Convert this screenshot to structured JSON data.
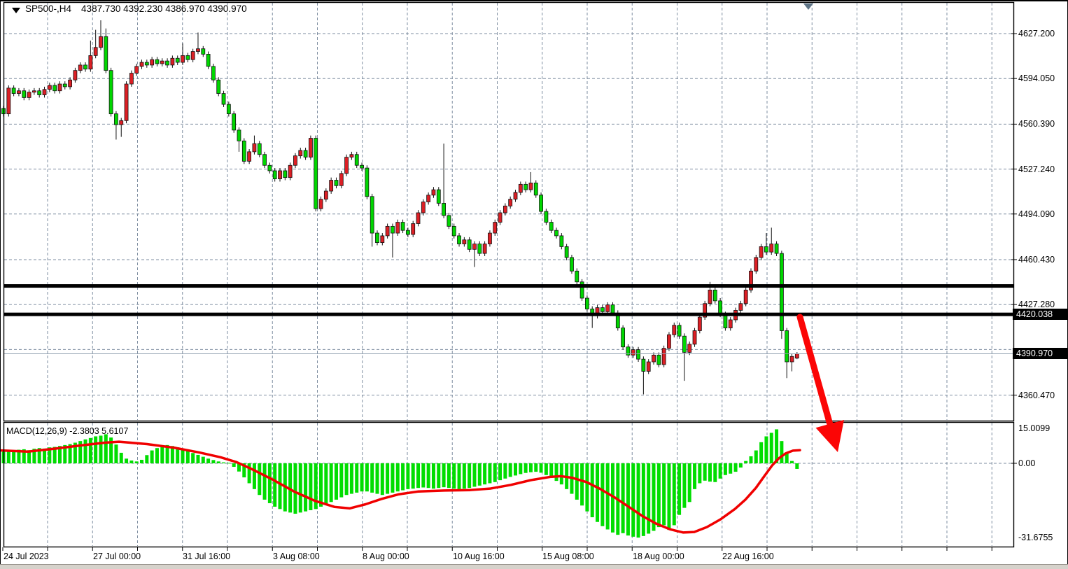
{
  "header": {
    "symbol_period": "SP500-,H4",
    "quote_open": "4387.730",
    "quote_high": "4392.230",
    "quote_low": "4386.970",
    "quote_close": "4390.970"
  },
  "macd_panel": {
    "label": "MACD(12,26,9) -2.3803 5.6107",
    "axis_labels": [
      "15.0099",
      "0.00",
      "-31.6755"
    ],
    "axis_values": [
      15.0099,
      0,
      -31.6755
    ]
  },
  "price_axis": {
    "tick_labels": [
      "4627.200",
      "4594.050",
      "4560.390",
      "4527.240",
      "4494.090",
      "4460.430",
      "4427.280",
      "4360.470"
    ],
    "tick_values": [
      4627.2,
      4594.05,
      4560.39,
      4527.24,
      4494.09,
      4460.43,
      4427.28,
      4360.47
    ],
    "hidden_grid_values": [
      4394.09
    ],
    "support_label": "4420.038",
    "current_label": "4390.970"
  },
  "time_axis": {
    "labels": [
      "24 Jul 2023",
      "27 Jul 00:00",
      "31 Jul 16:00",
      "3 Aug 08:00",
      "8 Aug 00:00",
      "10 Aug 16:00",
      "15 Aug 08:00",
      "18 Aug 00:00",
      "22 Aug 16:00"
    ],
    "positions_x": [
      4,
      132,
      260,
      389,
      517,
      646,
      774,
      903,
      1031
    ]
  },
  "levels": {
    "resistance": 4441.0,
    "support": 4420.038,
    "current_price": 4390.97
  },
  "colors": {
    "bull_candle": "#dc1f25",
    "bear_candle": "#00d600",
    "macd_hist": "#00dd00",
    "macd_signal": "#f00000",
    "arrow": "#fb0505",
    "grid": "#7e8da0",
    "current_line": "#93a1b1",
    "marker": "#5f7587",
    "level_line": "#000000"
  },
  "chart_data": [
    {
      "type": "candlestick",
      "title": "SP500- H4 candles (prices estimated from axis)",
      "x_start": 5,
      "x_step": 7.315,
      "open_first": 4572,
      "ylim": [
        4342,
        4640
      ],
      "closes": [
        4568,
        4587,
        4583,
        4585,
        4580,
        4584,
        4585,
        4582,
        4586,
        4589,
        4585,
        4590,
        4588,
        4593,
        4600,
        4604,
        4601,
        4611,
        4617,
        4625,
        4600,
        4568,
        4560,
        4563,
        4590,
        4598,
        4603,
        4606,
        4604,
        4608,
        4605,
        4607,
        4604,
        4609,
        4606,
        4611,
        4608,
        4614,
        4616,
        4612,
        4603,
        4593,
        4583,
        4575,
        4568,
        4556,
        4548,
        4533,
        4540,
        4546,
        4538,
        4530,
        4526,
        4520,
        4526,
        4521,
        4530,
        4537,
        4541,
        4536,
        4550,
        4498,
        4505,
        4511,
        4519,
        4515,
        4524,
        4536,
        4538,
        4530,
        4528,
        4507,
        4480,
        4473,
        4478,
        4485,
        4480,
        4488,
        4482,
        4479,
        4487,
        4495,
        4503,
        4508,
        4512,
        4502,
        4493,
        4485,
        4478,
        4472,
        4475,
        4468,
        4472,
        4465,
        4472,
        4480,
        4488,
        4495,
        4500,
        4505,
        4510,
        4516,
        4512,
        4517,
        4508,
        4496,
        4488,
        4482,
        4478,
        4470,
        4462,
        4452,
        4444,
        4432,
        4424,
        4419,
        4425,
        4422,
        4427,
        4421,
        4410,
        4396,
        4390,
        4394,
        4387,
        4378,
        4385,
        4390,
        4383,
        4395,
        4405,
        4412,
        4404,
        4392,
        4398,
        4408,
        4418,
        4428,
        4438,
        4430,
        4420,
        4410,
        4416,
        4423,
        4428,
        4438,
        4452,
        4462,
        4470,
        4466,
        4472,
        4465,
        4408,
        4385,
        4389,
        4390.97
      ],
      "hl_overrides": {
        "17": [
          4622,
          null
        ],
        "18": [
          4630,
          null
        ],
        "19": [
          4637,
          null
        ],
        "20": [
          4631,
          null
        ],
        "22": [
          null,
          4549
        ],
        "23": [
          null,
          4551
        ],
        "35": [
          4620,
          null
        ],
        "38": [
          4628,
          null
        ],
        "46": [
          null,
          4540
        ],
        "49": [
          4552,
          null
        ],
        "61": [
          null,
          4496
        ],
        "72": [
          null,
          4470
        ],
        "76": [
          null,
          4462
        ],
        "86": [
          4546,
          null
        ],
        "92": [
          null,
          4455
        ],
        "103": [
          4525,
          null
        ],
        "115": [
          null,
          4410
        ],
        "125": [
          null,
          4361
        ],
        "133": [
          null,
          4371
        ],
        "138": [
          4444,
          null
        ],
        "149": [
          4480,
          null
        ],
        "150": [
          4484,
          null
        ],
        "152": [
          null,
          4402
        ],
        "153": [
          null,
          4373
        ],
        "154": [
          null,
          4378
        ],
        "155": [
          4392.23,
          4386.97
        ]
      },
      "open_overrides": {
        "155": 4387.73
      },
      "color_scheme_note": "bullish candles rendered red, bearish rendered green (as shown in screenshot)"
    },
    {
      "type": "bar",
      "title": "MACD(12,26,9) histogram",
      "ylim": [
        -31.6755,
        15.0099
      ],
      "values": [
        5.0,
        5.5,
        5.2,
        5.8,
        6.0,
        5.6,
        6.2,
        6.5,
        6.3,
        6.8,
        7.0,
        7.4,
        7.8,
        8.2,
        8.8,
        9.5,
        10.2,
        10.8,
        11.5,
        11.8,
        12.4,
        11.0,
        8.0,
        4.5,
        2.0,
        1.2,
        0.8,
        1.5,
        3.5,
        5.5,
        6.5,
        7.2,
        7.8,
        7.4,
        6.8,
        6.0,
        5.2,
        4.4,
        3.6,
        2.8,
        2.0,
        1.4,
        0.8,
        0.4,
        0.2,
        -1.5,
        -3.5,
        -6.0,
        -8.5,
        -11.0,
        -13.5,
        -15.5,
        -17.0,
        -18.5,
        -19.5,
        -20.5,
        -21.0,
        -21.5,
        -21.0,
        -20.5,
        -20.0,
        -19.5,
        -18.5,
        -17.5,
        -16.5,
        -15.5,
        -14.5,
        -13.5,
        -13.0,
        -12.5,
        -12.0,
        -12.0,
        -12.5,
        -13.0,
        -13.5,
        -13.0,
        -12.5,
        -12.0,
        -11.5,
        -11.0,
        -10.8,
        -10.5,
        -10.3,
        -10.5,
        -10.8,
        -10.5,
        -10.2,
        -10.5,
        -10.8,
        -11.0,
        -10.8,
        -10.5,
        -10.0,
        -9.5,
        -9.0,
        -8.5,
        -8.0,
        -7.2,
        -6.5,
        -5.8,
        -5.2,
        -4.6,
        -4.1,
        -3.8,
        -3.6,
        -4.0,
        -5.0,
        -6.2,
        -7.5,
        -9.0,
        -11.0,
        -13.0,
        -15.5,
        -18.0,
        -20.5,
        -23.0,
        -25.0,
        -26.8,
        -28.2,
        -29.5,
        -30.5,
        -29.8,
        -30.8,
        -31.3,
        -31.68,
        -31.0,
        -30.0,
        -28.8,
        -27.2,
        -26.4,
        -28.4,
        -26.4,
        -22.0,
        -19.0,
        -16.5,
        -11.0,
        -8.5,
        -7.4,
        -7.8,
        -8.0,
        -6.5,
        -5.0,
        -4.4,
        -3.6,
        -1.8,
        1.0,
        3.0,
        5.5,
        9.0,
        11.5,
        13.0,
        14.5,
        9.5,
        4.5,
        1.0,
        -2.3803
      ]
    },
    {
      "type": "line",
      "title": "MACD signal line",
      "points": [
        [
          2,
          5.5
        ],
        [
          40,
          5.0
        ],
        [
          80,
          6.3
        ],
        [
          120,
          7.8
        ],
        [
          150,
          8.8
        ],
        [
          170,
          9.2
        ],
        [
          210,
          8.2
        ],
        [
          250,
          6.6
        ],
        [
          285,
          4.6
        ],
        [
          315,
          2.6
        ],
        [
          338,
          0.5
        ],
        [
          360,
          -2.5
        ],
        [
          390,
          -7.0
        ],
        [
          420,
          -12.0
        ],
        [
          450,
          -16.0
        ],
        [
          478,
          -18.6
        ],
        [
          500,
          -19.2
        ],
        [
          522,
          -17.5
        ],
        [
          545,
          -15.2
        ],
        [
          570,
          -13.2
        ],
        [
          598,
          -12.0
        ],
        [
          635,
          -11.6
        ],
        [
          672,
          -11.4
        ],
        [
          700,
          -10.8
        ],
        [
          730,
          -9.2
        ],
        [
          758,
          -7.2
        ],
        [
          786,
          -5.8
        ],
        [
          802,
          -5.5
        ],
        [
          818,
          -6.2
        ],
        [
          838,
          -8.0
        ],
        [
          858,
          -11.0
        ],
        [
          878,
          -14.5
        ],
        [
          898,
          -18.5
        ],
        [
          918,
          -22.5
        ],
        [
          938,
          -25.8
        ],
        [
          958,
          -28.2
        ],
        [
          976,
          -29.5
        ],
        [
          992,
          -29.3
        ],
        [
          1010,
          -27.2
        ],
        [
          1030,
          -23.8
        ],
        [
          1050,
          -19.5
        ],
        [
          1065,
          -15.5
        ],
        [
          1080,
          -10.5
        ],
        [
          1092,
          -5.5
        ],
        [
          1103,
          -1.0
        ],
        [
          1113,
          2.2
        ],
        [
          1123,
          4.3
        ],
        [
          1133,
          5.4
        ],
        [
          1143,
          5.61
        ]
      ]
    }
  ]
}
